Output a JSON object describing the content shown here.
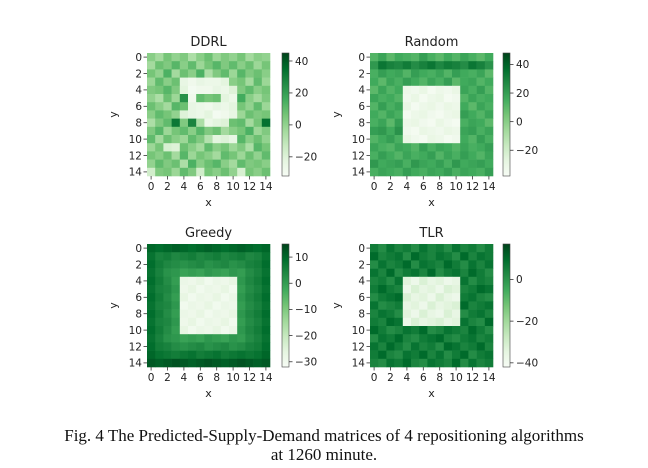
{
  "caption_line1": "Fig. 4 The Predicted-Supply-Demand matrices of 4 repositioning algorithms",
  "caption_line2": "at 1260 minute.",
  "colors": {
    "cmap": [
      "#f7fcf5",
      "#e5f5e0",
      "#c7e9c0",
      "#a1d99b",
      "#74c476",
      "#41ab5d",
      "#238b45",
      "#006d2c",
      "#00441b"
    ]
  },
  "chart_data": [
    {
      "type": "heatmap",
      "title": "DDRL",
      "xlabel": "x",
      "ylabel": "y",
      "xticks": [
        "0",
        "2",
        "4",
        "6",
        "8",
        "10",
        "12",
        "14"
      ],
      "yticks": [
        "0",
        "2",
        "4",
        "6",
        "8",
        "10",
        "12",
        "14"
      ],
      "vmin": -32,
      "vmax": 45,
      "cbar_ticks": [
        40,
        20,
        0,
        -20
      ],
      "cbar_tick_labels": [
        "40",
        "20",
        "0",
        "−20"
      ],
      "values": [
        [
          2,
          -4,
          6,
          0,
          4,
          -6,
          2,
          8,
          -2,
          4,
          0,
          6,
          -4,
          2,
          0
        ],
        [
          -4,
          8,
          4,
          12,
          2,
          10,
          -2,
          6,
          12,
          4,
          10,
          2,
          8,
          -2,
          6
        ],
        [
          6,
          0,
          14,
          -4,
          8,
          2,
          14,
          -6,
          4,
          10,
          -2,
          12,
          4,
          8,
          2
        ],
        [
          -2,
          10,
          2,
          8,
          -24,
          -28,
          -24,
          -26,
          -26,
          -22,
          2,
          6,
          -4,
          10,
          -2
        ],
        [
          4,
          6,
          12,
          4,
          -22,
          -30,
          -28,
          -28,
          -24,
          -26,
          -20,
          4,
          10,
          2,
          6
        ],
        [
          0,
          -6,
          8,
          -2,
          24,
          -28,
          10,
          6,
          8,
          -22,
          -26,
          16,
          2,
          -4,
          4
        ],
        [
          8,
          2,
          -4,
          12,
          8,
          -24,
          -26,
          -28,
          -24,
          -26,
          -22,
          6,
          0,
          10,
          -2
        ],
        [
          2,
          10,
          6,
          0,
          -20,
          -24,
          -26,
          -22,
          -30,
          -28,
          -24,
          -2,
          8,
          4,
          6
        ],
        [
          -6,
          4,
          10,
          32,
          4,
          28,
          -6,
          -26,
          -22,
          -20,
          8,
          10,
          -4,
          6,
          34
        ],
        [
          4,
          12,
          -2,
          6,
          10,
          2,
          12,
          4,
          8,
          -4,
          2,
          6,
          14,
          -2,
          4
        ],
        [
          10,
          -4,
          8,
          2,
          -2,
          10,
          4,
          -8,
          -22,
          -20,
          -24,
          12,
          2,
          8,
          0
        ],
        [
          -2,
          6,
          -18,
          -20,
          8,
          2,
          -4,
          10,
          2,
          6,
          -2,
          4,
          -6,
          12,
          6
        ],
        [
          6,
          2,
          8,
          -4,
          12,
          -2,
          6,
          2,
          -4,
          10,
          6,
          -2,
          8,
          0,
          10
        ],
        [
          0,
          10,
          4,
          8,
          -6,
          14,
          2,
          8,
          12,
          2,
          -4,
          10,
          4,
          6,
          2
        ],
        [
          -16,
          4,
          6,
          -2,
          10,
          4,
          -16,
          6,
          2,
          8,
          0,
          -18,
          6,
          2,
          8
        ]
      ]
    },
    {
      "type": "heatmap",
      "title": "Random",
      "xlabel": "x",
      "ylabel": "y",
      "xticks": [
        "0",
        "2",
        "4",
        "6",
        "8",
        "10",
        "12",
        "14"
      ],
      "yticks": [
        "0",
        "2",
        "4",
        "6",
        "8",
        "10",
        "12",
        "14"
      ],
      "vmin": -38,
      "vmax": 48,
      "cbar_ticks": [
        40,
        20,
        0,
        -20
      ],
      "cbar_tick_labels": [
        "40",
        "20",
        "0",
        "−20"
      ],
      "values": [
        [
          12,
          18,
          10,
          16,
          14,
          12,
          20,
          14,
          10,
          16,
          12,
          18,
          14,
          10,
          16
        ],
        [
          22,
          34,
          30,
          28,
          32,
          26,
          30,
          34,
          28,
          32,
          30,
          26,
          34,
          30,
          24
        ],
        [
          14,
          20,
          16,
          18,
          12,
          20,
          16,
          14,
          18,
          12,
          20,
          16,
          14,
          18,
          10
        ],
        [
          16,
          10,
          18,
          14,
          20,
          16,
          12,
          18,
          14,
          20,
          10,
          16,
          18,
          12,
          16
        ],
        [
          10,
          18,
          12,
          16,
          -32,
          -34,
          -30,
          -36,
          -32,
          -34,
          -30,
          18,
          14,
          20,
          12
        ],
        [
          18,
          14,
          16,
          12,
          -34,
          -30,
          -36,
          -32,
          -30,
          -36,
          -34,
          12,
          18,
          14,
          16
        ],
        [
          12,
          20,
          14,
          18,
          -30,
          -36,
          -32,
          -30,
          -34,
          -30,
          -32,
          16,
          10,
          18,
          14
        ],
        [
          16,
          12,
          18,
          14,
          -36,
          -32,
          -30,
          -34,
          -36,
          -32,
          -30,
          20,
          16,
          12,
          18
        ],
        [
          14,
          18,
          10,
          20,
          -32,
          -30,
          -34,
          -36,
          -30,
          -34,
          -36,
          14,
          18,
          16,
          10
        ],
        [
          20,
          22,
          16,
          24,
          -34,
          -36,
          -30,
          -32,
          -34,
          -30,
          -32,
          18,
          20,
          14,
          18
        ],
        [
          12,
          16,
          20,
          14,
          -30,
          -34,
          -36,
          -30,
          -32,
          -36,
          -34,
          16,
          12,
          20,
          14
        ],
        [
          18,
          14,
          12,
          18,
          16,
          12,
          20,
          14,
          18,
          16,
          12,
          18,
          14,
          16,
          20
        ],
        [
          14,
          20,
          16,
          12,
          18,
          14,
          16,
          20,
          12,
          18,
          14,
          20,
          16,
          12,
          18
        ],
        [
          22,
          16,
          18,
          20,
          14,
          22,
          18,
          16,
          20,
          14,
          22,
          16,
          18,
          20,
          16
        ],
        [
          14,
          18,
          16,
          14,
          20,
          16,
          14,
          18,
          16,
          20,
          14,
          18,
          16,
          14,
          20
        ]
      ]
    },
    {
      "type": "heatmap",
      "title": "Greedy",
      "xlabel": "x",
      "ylabel": "y",
      "xticks": [
        "0",
        "2",
        "4",
        "6",
        "8",
        "10",
        "12",
        "14"
      ],
      "yticks": [
        "0",
        "2",
        "4",
        "6",
        "8",
        "10",
        "12",
        "14"
      ],
      "vmin": -32,
      "vmax": 15,
      "cbar_ticks": [
        10,
        0,
        -10,
        -20,
        -30
      ],
      "cbar_tick_labels": [
        "10",
        "0",
        "−10",
        "−20",
        "−30"
      ],
      "values": [
        [
          10,
          9,
          10,
          11,
          10,
          9,
          10,
          11,
          10,
          9,
          10,
          11,
          10,
          9,
          10
        ],
        [
          8,
          5,
          6,
          4,
          5,
          6,
          4,
          5,
          6,
          4,
          5,
          6,
          4,
          5,
          8
        ],
        [
          9,
          6,
          4,
          3,
          2,
          3,
          4,
          2,
          3,
          4,
          2,
          3,
          5,
          6,
          9
        ],
        [
          8,
          5,
          2,
          1,
          -1,
          0,
          -1,
          1,
          0,
          -1,
          1,
          0,
          3,
          5,
          8
        ],
        [
          9,
          6,
          3,
          0,
          -28,
          -29,
          -27,
          -30,
          -28,
          -29,
          -27,
          1,
          4,
          6,
          9
        ],
        [
          8,
          5,
          4,
          1,
          -29,
          -27,
          -30,
          -28,
          -29,
          -27,
          -30,
          0,
          3,
          5,
          8
        ],
        [
          9,
          6,
          3,
          0,
          -27,
          -30,
          -28,
          -29,
          -27,
          -30,
          -28,
          1,
          4,
          6,
          9
        ],
        [
          8,
          5,
          4,
          1,
          -30,
          -28,
          -29,
          -27,
          -30,
          -28,
          -29,
          0,
          3,
          5,
          8
        ],
        [
          9,
          6,
          3,
          0,
          -28,
          -29,
          -27,
          -30,
          -28,
          -29,
          -27,
          1,
          4,
          6,
          9
        ],
        [
          8,
          5,
          4,
          1,
          -29,
          -27,
          -30,
          -28,
          -29,
          -27,
          -30,
          0,
          3,
          5,
          8
        ],
        [
          9,
          6,
          3,
          0,
          -27,
          -30,
          -28,
          -29,
          -27,
          -30,
          -28,
          1,
          4,
          6,
          9
        ],
        [
          8,
          5,
          2,
          1,
          -1,
          0,
          -1,
          1,
          0,
          -1,
          1,
          0,
          3,
          5,
          8
        ],
        [
          9,
          6,
          5,
          3,
          2,
          3,
          4,
          2,
          3,
          4,
          2,
          3,
          5,
          6,
          9
        ],
        [
          10,
          8,
          7,
          6,
          7,
          8,
          6,
          7,
          8,
          6,
          7,
          8,
          7,
          8,
          10
        ],
        [
          12,
          11,
          12,
          13,
          12,
          11,
          12,
          13,
          12,
          11,
          12,
          13,
          12,
          11,
          12
        ]
      ]
    },
    {
      "type": "heatmap",
      "title": "TLR",
      "xlabel": "x",
      "ylabel": "y",
      "xticks": [
        "0",
        "2",
        "4",
        "6",
        "8",
        "10",
        "12",
        "14"
      ],
      "yticks": [
        "0",
        "2",
        "4",
        "6",
        "8",
        "10",
        "12",
        "14"
      ],
      "vmin": -42,
      "vmax": 17,
      "cbar_ticks": [
        0,
        -20,
        -40
      ],
      "cbar_tick_labels": [
        "0",
        "−20",
        "−40"
      ],
      "values": [
        [
          6,
          2,
          8,
          4,
          6,
          2,
          8,
          4,
          6,
          2,
          8,
          4,
          6,
          2,
          6
        ],
        [
          10,
          4,
          6,
          8,
          2,
          10,
          6,
          4,
          8,
          6,
          2,
          10,
          4,
          8,
          6
        ],
        [
          2,
          8,
          4,
          6,
          10,
          2,
          8,
          6,
          4,
          10,
          6,
          2,
          8,
          4,
          8
        ],
        [
          8,
          4,
          10,
          2,
          6,
          8,
          4,
          10,
          2,
          6,
          8,
          4,
          10,
          6,
          2
        ],
        [
          4,
          6,
          2,
          8,
          -34,
          -38,
          -32,
          -36,
          -34,
          -38,
          -36,
          8,
          2,
          6,
          4
        ],
        [
          6,
          10,
          6,
          4,
          -38,
          -32,
          -36,
          -34,
          -38,
          -32,
          -34,
          4,
          6,
          10,
          8
        ],
        [
          2,
          6,
          8,
          10,
          -32,
          -36,
          -34,
          -38,
          -32,
          -36,
          -38,
          6,
          8,
          4,
          2
        ],
        [
          8,
          2,
          4,
          6,
          -36,
          -34,
          -38,
          -32,
          -36,
          -34,
          -32,
          10,
          4,
          6,
          8
        ],
        [
          4,
          8,
          6,
          2,
          -34,
          -38,
          -32,
          -36,
          -38,
          -32,
          -36,
          2,
          6,
          8,
          4
        ],
        [
          6,
          4,
          10,
          8,
          -38,
          -32,
          -36,
          -34,
          -32,
          -36,
          -34,
          8,
          4,
          2,
          10
        ],
        [
          10,
          6,
          2,
          4,
          8,
          6,
          10,
          2,
          4,
          8,
          6,
          4,
          10,
          6,
          2
        ],
        [
          2,
          8,
          6,
          10,
          4,
          2,
          6,
          8,
          10,
          4,
          2,
          6,
          8,
          4,
          6
        ],
        [
          8,
          4,
          10,
          6,
          2,
          8,
          4,
          6,
          2,
          10,
          8,
          4,
          6,
          10,
          4
        ],
        [
          6,
          10,
          4,
          2,
          8,
          6,
          10,
          4,
          8,
          2,
          6,
          10,
          2,
          6,
          8
        ],
        [
          4,
          2,
          8,
          6,
          10,
          4,
          2,
          8,
          6,
          4,
          10,
          2,
          8,
          4,
          6
        ]
      ]
    }
  ]
}
